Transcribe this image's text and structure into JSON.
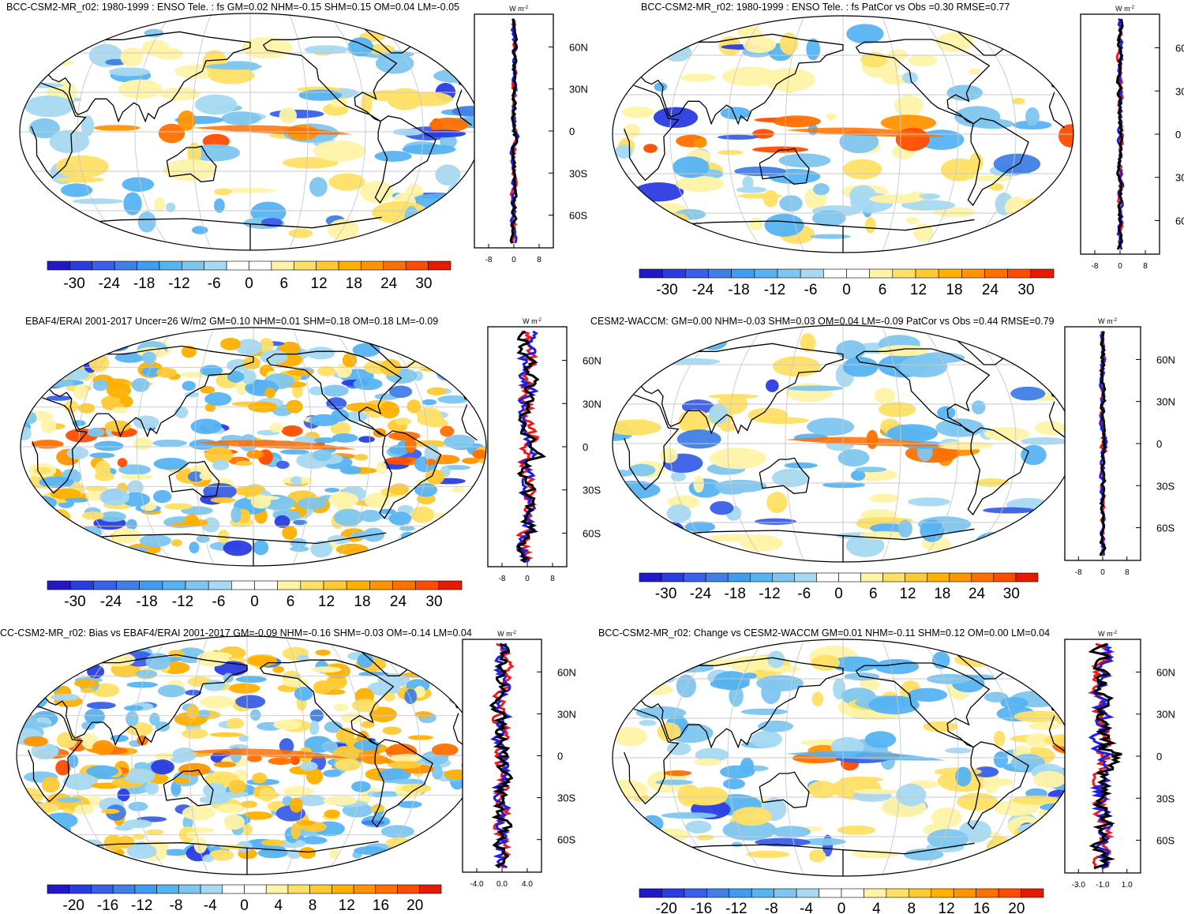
{
  "colors": {
    "range30": [
      "#2318c8",
      "#2a3ce0",
      "#3a5fe8",
      "#3f7fe6",
      "#3f9cef",
      "#56b3f2",
      "#7ec6ef",
      "#a7d9f2",
      "#ffffff",
      "#ffffff",
      "#fff3a8",
      "#ffe066",
      "#ffc933",
      "#ffb000",
      "#ff9300",
      "#ff7000",
      "#ff4d00",
      "#e61a00"
    ],
    "range20": [
      "#2318c8",
      "#2a3ce0",
      "#3a5fe8",
      "#3f7fe6",
      "#3f9cef",
      "#56b3f2",
      "#7ec6ef",
      "#a7d9f2",
      "#ffffff",
      "#ffffff",
      "#fff3a8",
      "#ffe066",
      "#ffc933",
      "#ffb000",
      "#ff9300",
      "#ff7000",
      "#ff4d00",
      "#e61a00"
    ],
    "zonal": {
      "blue": "#1f1fe0",
      "red": "#ee1c1c",
      "black": "#000000"
    }
  },
  "panels": [
    {
      "title": "BCC-CSM2-MR_r02: 1980-1999 : ENSO Tele. : fs GM=0.02 NHM=-0.15 SHM=0.15 OM=0.04 LM=-0.05",
      "colorbar_labels": [
        "-30",
        "-24",
        "-18",
        "-12",
        "-6",
        "0",
        "6",
        "12",
        "18",
        "24",
        "30"
      ],
      "zonal": {
        "unit": "W m",
        "unit_exp": "-2",
        "lat_labels": [
          "60N",
          "30N",
          "0",
          "30S",
          "60S"
        ],
        "x_labels": [
          "-8",
          "0",
          "8"
        ]
      }
    },
    {
      "title": "BCC-CSM2-MR_r02: 1980-1999 : ENSO Tele. : fs PatCor vs Obs =0.30 RMSE=0.77",
      "colorbar_labels": [
        "-30",
        "-24",
        "-18",
        "-12",
        "-6",
        "0",
        "6",
        "12",
        "18",
        "24",
        "30"
      ],
      "zonal": {
        "unit": "W m",
        "unit_exp": "-2",
        "lat_labels": [
          "60",
          "30",
          "0",
          "30",
          "60"
        ],
        "x_labels": [
          "-8",
          "0",
          "8"
        ]
      }
    },
    {
      "title": "EBAF4/ERAI 2001-2017 Uncer=26 W/m2 GM=0.10 NHM=0.01 SHM=0.18 OM=0.18 LM=-0.09",
      "colorbar_labels": [
        "-30",
        "-24",
        "-18",
        "-12",
        "-6",
        "0",
        "6",
        "12",
        "18",
        "24",
        "30"
      ],
      "zonal": {
        "unit": "W m",
        "unit_exp": "-2",
        "lat_labels": [
          "60N",
          "30N",
          "0",
          "30S",
          "60S"
        ],
        "x_labels": [
          "-8",
          "0",
          "8"
        ]
      }
    },
    {
      "title": "CESM2-WACCM: GM=0.00 NHM=-0.03 SHM=0.03 OM=0.04 LM=-0.09 PatCor vs Obs =0.44 RMSE=0.79",
      "colorbar_labels": [
        "-30",
        "-24",
        "-18",
        "-12",
        "-6",
        "0",
        "6",
        "12",
        "18",
        "24",
        "30"
      ],
      "zonal": {
        "unit": "W m",
        "unit_exp": "-2",
        "lat_labels": [
          "60N",
          "30N",
          "0",
          "30S",
          "60S"
        ],
        "x_labels": [
          "-8",
          "0",
          "8"
        ]
      }
    },
    {
      "title": "CC-CSM2-MR_r02: Bias vs EBAF4/ERAI 2001-2017 GM=-0.09 NHM=-0.16 SHM=-0.03 OM=-0.14 LM=0.04",
      "colorbar_labels": [
        "-20",
        "-16",
        "-12",
        "-8",
        "-4",
        "0",
        "4",
        "8",
        "12",
        "16",
        "20"
      ],
      "zonal": {
        "unit": "W m",
        "unit_exp": "-2",
        "lat_labels": [
          "60N",
          "30N",
          "0",
          "30S",
          "60S"
        ],
        "x_labels": [
          "-4.0",
          "0.0",
          "4.0"
        ]
      }
    },
    {
      "title": "BCC-CSM2-MR_r02: Change vs CESM2-WACCM GM=0.01 NHM=-0.11 SHM=0.12 OM=0.00 LM=0.04",
      "colorbar_labels": [
        "-20",
        "-16",
        "-12",
        "-8",
        "-4",
        "0",
        "4",
        "8",
        "12",
        "16",
        "20"
      ],
      "zonal": {
        "unit": "W m",
        "unit_exp": "-2",
        "lat_labels": [
          "60N",
          "30N",
          "0",
          "30S",
          "60S"
        ],
        "x_labels": [
          "-3.0",
          "-1.0",
          "1.0"
        ]
      }
    }
  ]
}
